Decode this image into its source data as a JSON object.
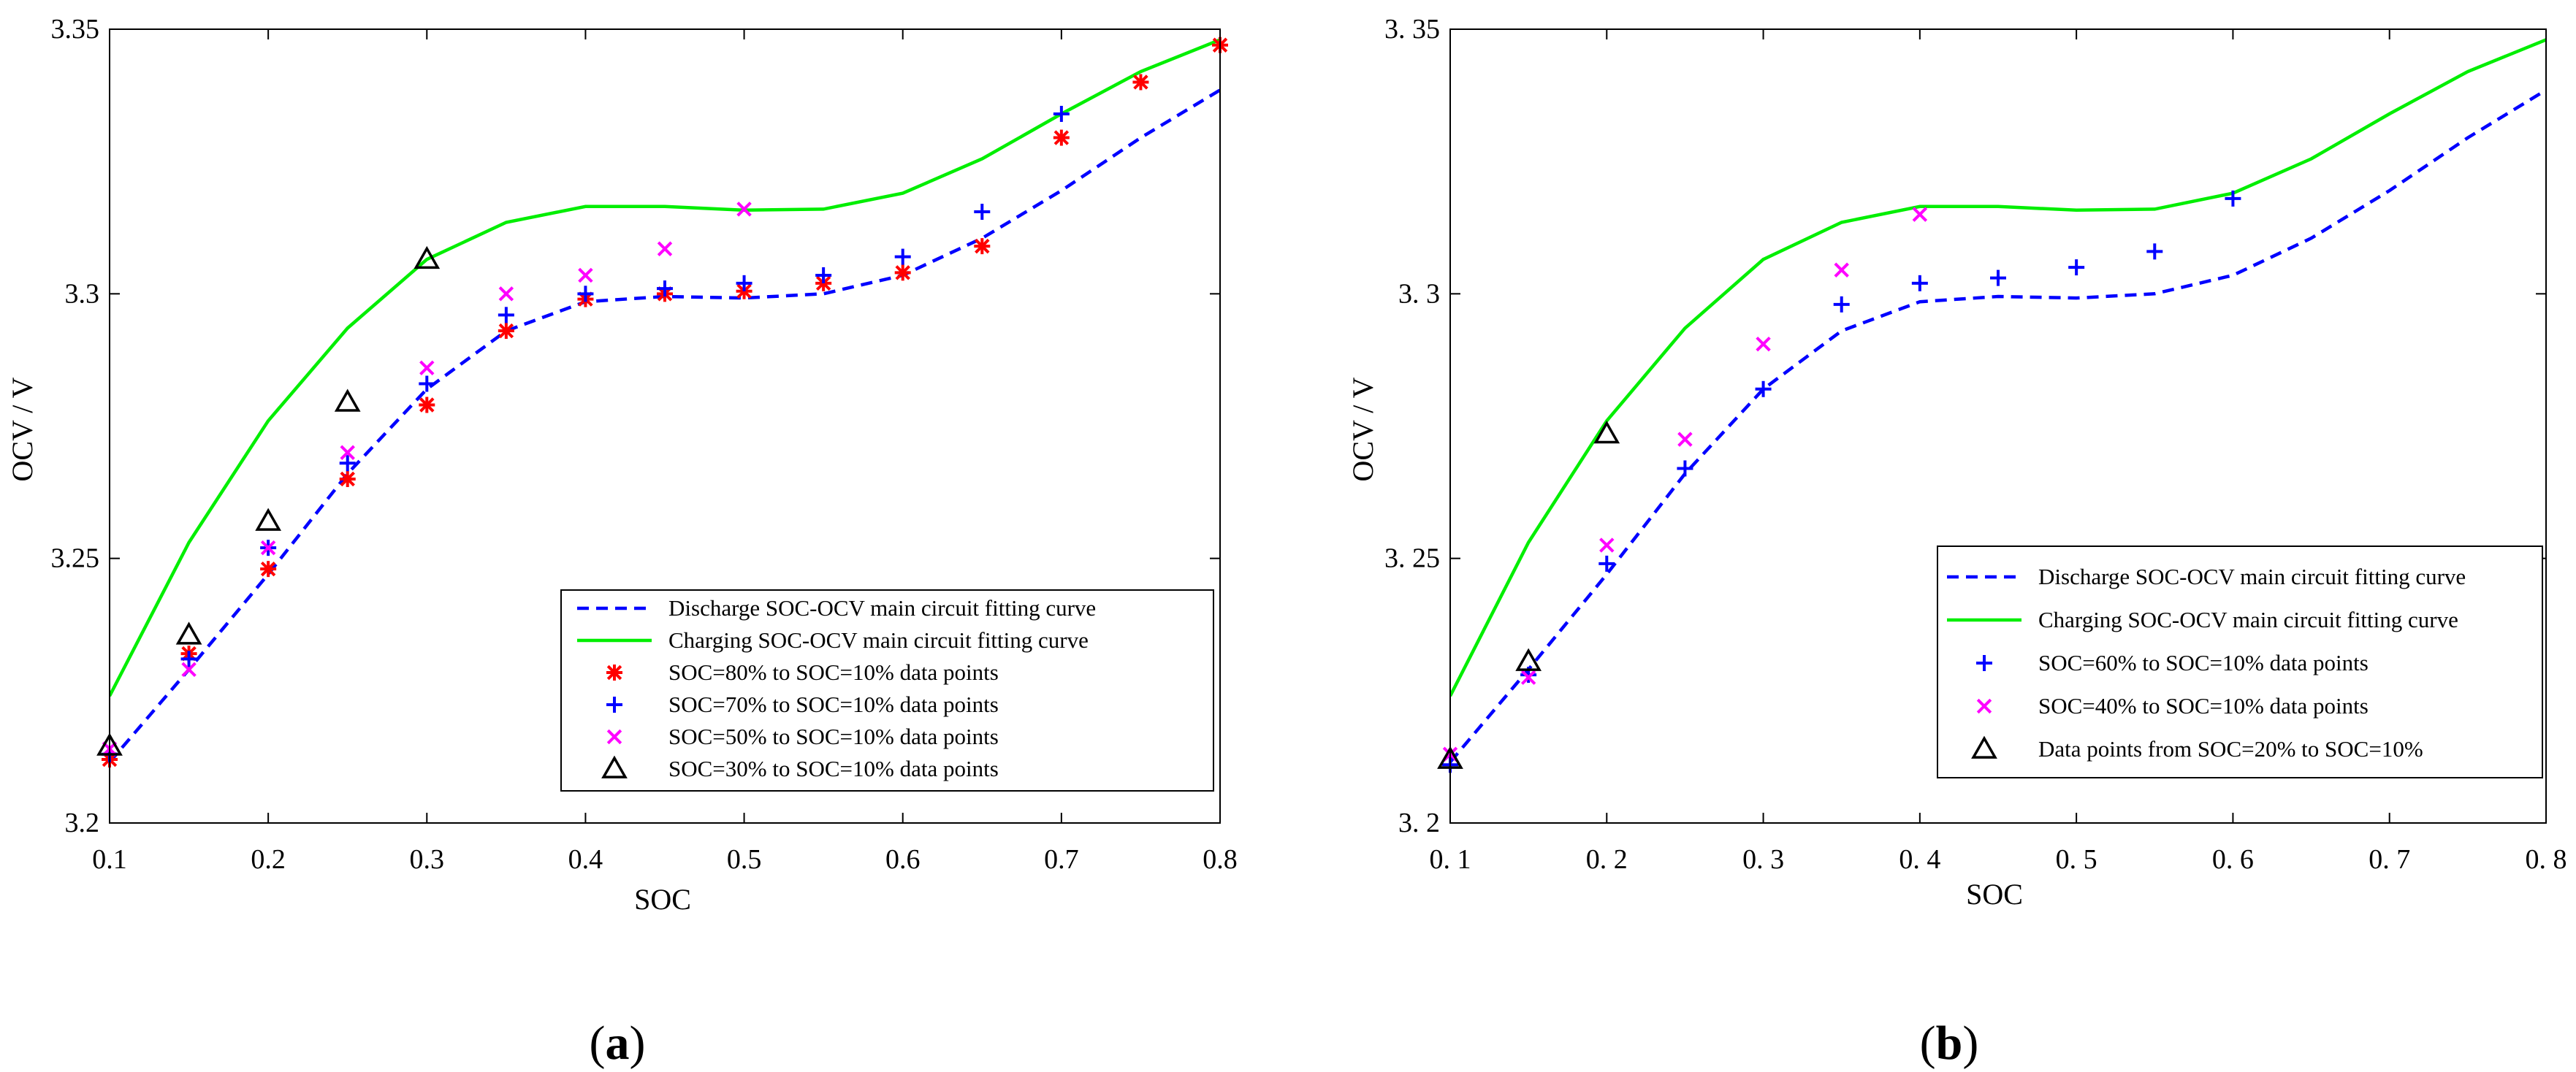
{
  "chart_data": [
    {
      "panel_label": "a",
      "type": "line",
      "xlabel": "SOC",
      "ylabel": "OCV / V",
      "xlim": [
        0.1,
        0.8
      ],
      "ylim": [
        3.2,
        3.35
      ],
      "xticks": [
        0.1,
        0.2,
        0.3,
        0.4,
        0.5,
        0.6,
        0.7,
        0.8
      ],
      "yticks": [
        3.2,
        3.25,
        3.3,
        3.35
      ],
      "xtick_labels": [
        "0.1",
        "0.2",
        "0.3",
        "0.4",
        "0.5",
        "0.6",
        "0.7",
        "0.8"
      ],
      "ytick_labels": [
        "3.2",
        "3.25",
        "3.3",
        "3.35"
      ],
      "legend_position": "bottom-right",
      "series": [
        {
          "name": "Discharge SOC-OCV main circuit fitting curve",
          "kind": "line",
          "style": "dashed",
          "color": "#0000ff",
          "x": [
            0.1,
            0.15,
            0.2,
            0.25,
            0.3,
            0.35,
            0.4,
            0.45,
            0.5,
            0.55,
            0.6,
            0.65,
            0.7,
            0.75,
            0.8
          ],
          "y": [
            3.2115,
            3.229,
            3.247,
            3.266,
            3.282,
            3.293,
            3.2985,
            3.2995,
            3.2992,
            3.3,
            3.3035,
            3.3105,
            3.3195,
            3.3295,
            3.3385
          ]
        },
        {
          "name": "Charging SOC-OCV main circuit fitting curve",
          "kind": "line",
          "style": "solid",
          "color": "#00ee00",
          "x": [
            0.1,
            0.15,
            0.2,
            0.25,
            0.3,
            0.35,
            0.4,
            0.45,
            0.5,
            0.55,
            0.6,
            0.65,
            0.7,
            0.75,
            0.8
          ],
          "y": [
            3.224,
            3.253,
            3.276,
            3.2935,
            3.3065,
            3.3135,
            3.3165,
            3.3165,
            3.3158,
            3.316,
            3.319,
            3.3255,
            3.334,
            3.342,
            3.348
          ]
        },
        {
          "name": "SOC=80% to SOC=10% data points",
          "kind": "scatter",
          "marker": "asterisk",
          "color": "#ff0000",
          "x": [
            0.1,
            0.15,
            0.2,
            0.25,
            0.3,
            0.35,
            0.4,
            0.45,
            0.5,
            0.55,
            0.6,
            0.65,
            0.7,
            0.75,
            0.8
          ],
          "y": [
            3.212,
            3.232,
            3.248,
            3.265,
            3.279,
            3.293,
            3.299,
            3.3,
            3.3005,
            3.302,
            3.304,
            3.309,
            3.3295,
            3.34,
            3.347
          ]
        },
        {
          "name": "SOC=70% to SOC=10% data points",
          "kind": "scatter",
          "marker": "plus",
          "color": "#0000ff",
          "x": [
            0.1,
            0.15,
            0.2,
            0.25,
            0.3,
            0.35,
            0.4,
            0.45,
            0.5,
            0.55,
            0.6,
            0.65,
            0.7
          ],
          "y": [
            3.213,
            3.231,
            3.252,
            3.268,
            3.283,
            3.296,
            3.3,
            3.301,
            3.302,
            3.3035,
            3.307,
            3.3155,
            3.334
          ]
        },
        {
          "name": "SOC=50% to SOC=10% data points",
          "kind": "scatter",
          "marker": "cross",
          "color": "#ff00ff",
          "x": [
            0.1,
            0.15,
            0.2,
            0.25,
            0.3,
            0.35,
            0.4,
            0.45,
            0.5
          ],
          "y": [
            3.214,
            3.229,
            3.252,
            3.27,
            3.286,
            3.3,
            3.3035,
            3.3085,
            3.316
          ]
        },
        {
          "name": "SOC=30% to SOC=10% data points",
          "kind": "scatter",
          "marker": "triangle",
          "color": "#000000",
          "x": [
            0.1,
            0.15,
            0.2,
            0.25,
            0.3
          ],
          "y": [
            3.2145,
            3.2355,
            3.257,
            3.2795,
            3.3065
          ]
        }
      ]
    },
    {
      "panel_label": "b",
      "type": "line",
      "xlabel": "SOC",
      "ylabel": "OCV / V",
      "xlim": [
        0.1,
        0.8
      ],
      "ylim": [
        3.2,
        3.35
      ],
      "xticks": [
        0.1,
        0.2,
        0.3,
        0.4,
        0.5,
        0.6,
        0.7,
        0.8
      ],
      "yticks": [
        3.2,
        3.25,
        3.3,
        3.35
      ],
      "xtick_labels": [
        "0. 1",
        "0. 2",
        "0. 3",
        "0. 4",
        "0. 5",
        "0. 6",
        "0. 7",
        "0. 8"
      ],
      "ytick_labels": [
        "3. 2",
        "3. 25",
        "3. 3",
        "3. 35"
      ],
      "legend_position": "bottom-right",
      "series": [
        {
          "name": "Discharge SOC-OCV main circuit fitting curve",
          "kind": "line",
          "style": "dashed",
          "color": "#0000ff",
          "x": [
            0.1,
            0.15,
            0.2,
            0.25,
            0.3,
            0.35,
            0.4,
            0.45,
            0.5,
            0.55,
            0.6,
            0.65,
            0.7,
            0.75,
            0.8
          ],
          "y": [
            3.2115,
            3.229,
            3.247,
            3.266,
            3.282,
            3.293,
            3.2985,
            3.2995,
            3.2992,
            3.3,
            3.3035,
            3.3105,
            3.3195,
            3.3295,
            3.3385
          ]
        },
        {
          "name": "Charging SOC-OCV main circuit fitting curve",
          "kind": "line",
          "style": "solid",
          "color": "#00ee00",
          "x": [
            0.1,
            0.15,
            0.2,
            0.25,
            0.3,
            0.35,
            0.4,
            0.45,
            0.5,
            0.55,
            0.6,
            0.65,
            0.7,
            0.75,
            0.8
          ],
          "y": [
            3.224,
            3.253,
            3.276,
            3.2935,
            3.3065,
            3.3135,
            3.3165,
            3.3165,
            3.3158,
            3.316,
            3.319,
            3.3255,
            3.334,
            3.342,
            3.348
          ]
        },
        {
          "name": "SOC=60% to SOC=10% data points",
          "kind": "scatter",
          "marker": "plus",
          "color": "#0000ff",
          "x": [
            0.1,
            0.15,
            0.2,
            0.25,
            0.3,
            0.35,
            0.4,
            0.45,
            0.5,
            0.55,
            0.6
          ],
          "y": [
            3.211,
            3.228,
            3.249,
            3.267,
            3.282,
            3.298,
            3.302,
            3.303,
            3.305,
            3.308,
            3.318
          ]
        },
        {
          "name": "SOC=40% to SOC=10% data points",
          "kind": "scatter",
          "marker": "cross",
          "color": "#ff00ff",
          "x": [
            0.1,
            0.15,
            0.2,
            0.25,
            0.3,
            0.35,
            0.4
          ],
          "y": [
            3.213,
            3.2275,
            3.2525,
            3.2725,
            3.2905,
            3.3045,
            3.315
          ]
        },
        {
          "name": "Data points from SOC=20% to SOC=10%",
          "kind": "scatter",
          "marker": "triangle",
          "color": "#000000",
          "x": [
            0.1,
            0.15,
            0.2
          ],
          "y": [
            3.212,
            3.2305,
            3.2735
          ]
        }
      ]
    }
  ]
}
